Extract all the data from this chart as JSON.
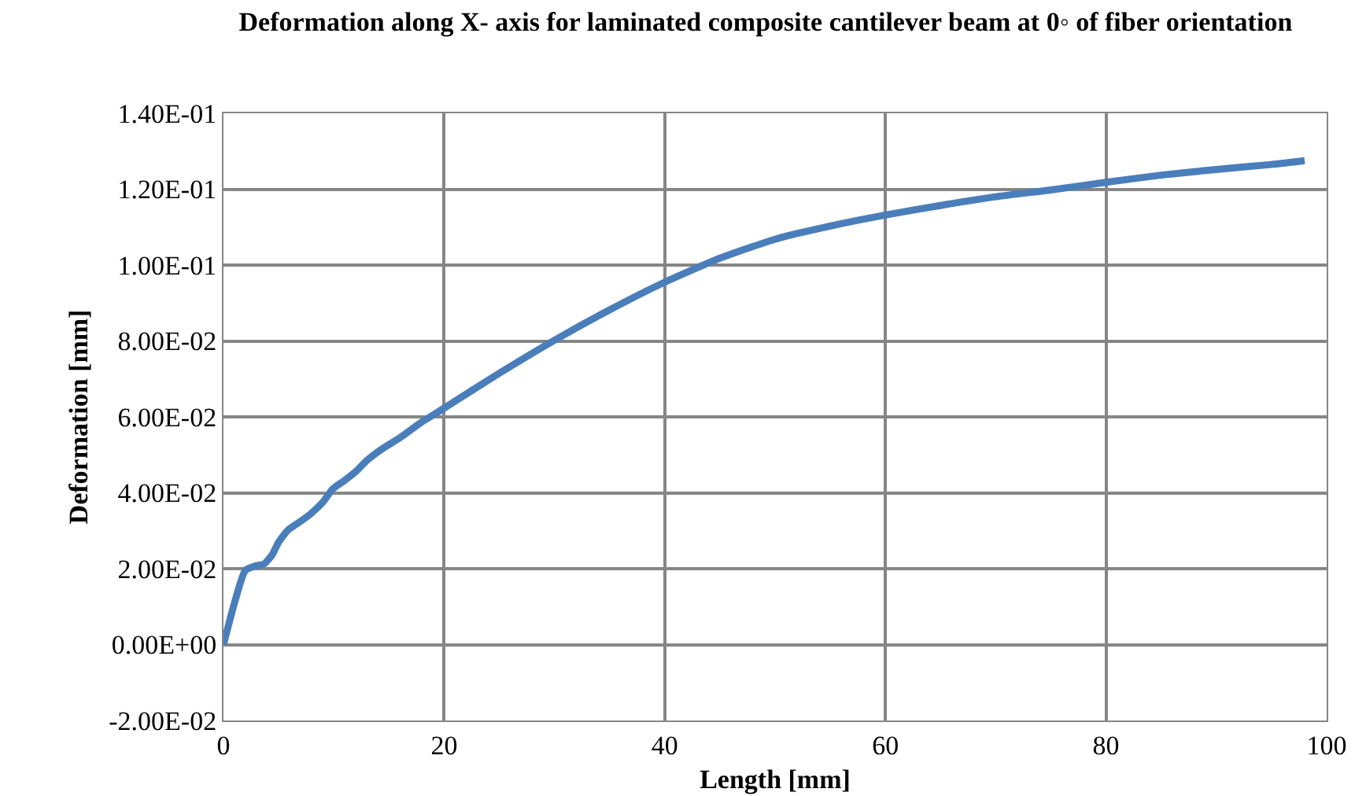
{
  "chart_data": {
    "type": "line",
    "title": "Deformation along X- axis for laminated composite cantilever beam at 0◦ of fiber orientation",
    "xlabel": "Length [mm]",
    "ylabel": "Deformation [mm]",
    "series": [
      {
        "color": "#4a7ebb",
        "x": [
          0,
          1,
          2,
          3,
          3.7,
          4.4,
          5,
          5.9,
          7,
          8,
          9,
          9.9,
          11,
          12,
          13,
          14.4,
          16,
          17.8,
          20,
          25,
          30,
          35,
          40,
          45,
          50,
          55,
          60,
          65,
          70,
          75,
          80,
          85,
          90,
          95,
          98
        ],
        "values": [
          0,
          0.011,
          0.0196,
          0.0208,
          0.0213,
          0.0236,
          0.027,
          0.0303,
          0.0325,
          0.0347,
          0.0375,
          0.041,
          0.0433,
          0.0456,
          0.0485,
          0.0516,
          0.0545,
          0.0583,
          0.0623,
          0.0715,
          0.0802,
          0.0882,
          0.0955,
          0.1018,
          0.1068,
          0.1103,
          0.1132,
          0.1157,
          0.118,
          0.1198,
          0.1218,
          0.1237,
          0.1252,
          0.1265,
          0.1275
        ]
      }
    ],
    "xlim": [
      0,
      100
    ],
    "xticks": [
      0,
      20,
      40,
      60,
      80,
      100
    ],
    "ylim": [
      -0.02,
      0.14
    ],
    "yticks": [
      {
        "value": -0.02,
        "label": "-2.00E-02"
      },
      {
        "value": 0,
        "label": "0.00E+00"
      },
      {
        "value": 0.02,
        "label": "2.00E-02"
      },
      {
        "value": 0.04,
        "label": "4.00E-02"
      },
      {
        "value": 0.06,
        "label": "6.00E-02"
      },
      {
        "value": 0.08,
        "label": "8.00E-02"
      },
      {
        "value": 0.1,
        "label": "1.00E-01"
      },
      {
        "value": 0.12,
        "label": "1.20E-01"
      },
      {
        "value": 0.14,
        "label": "1.40E-01"
      }
    ],
    "grid": true,
    "legend": false,
    "marker": "none",
    "line_style": "solid"
  }
}
